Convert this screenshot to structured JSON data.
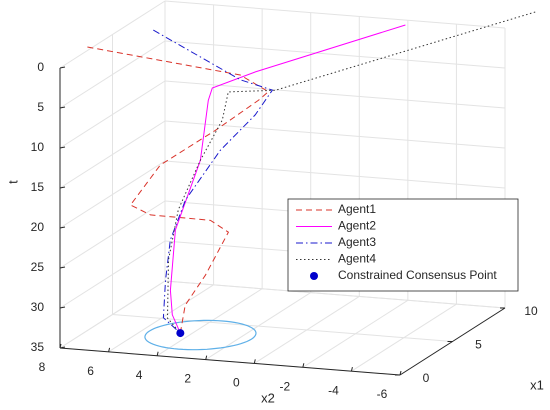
{
  "chart_data": {
    "type": "line3d",
    "x1label": "x1",
    "x2label": "x2",
    "tlabel": "t",
    "x1lim": [
      0,
      10
    ],
    "x2lim": [
      -6,
      8
    ],
    "tlim": [
      0,
      35
    ],
    "x1ticks": [
      0,
      5,
      10
    ],
    "x2ticks": [
      8,
      6,
      4,
      2,
      0,
      -2,
      -4,
      -6
    ],
    "tticks": [
      0,
      5,
      10,
      15,
      20,
      25,
      30,
      35
    ],
    "grid": true,
    "legend": "lower-right",
    "series": [
      {
        "name": "Agent1",
        "color": "#d9332a",
        "dash": "6,4",
        "x1": [
          3.07,
          5,
          5,
          4.8,
          4.5,
          4,
          3.8,
          4.5,
          6,
          6,
          4.5,
          3.6,
          3.25
        ],
        "x2": [
          8.2,
          2.74,
          1.58,
          1.91,
          3.55,
          5.6,
          6.74,
          6.22,
          4.4,
          3.66,
          3.96,
          4.4,
          4.45
        ],
        "t": [
          0,
          3.8,
          5.6,
          6.6,
          10.5,
          14.9,
          20,
          21.7,
          23.2,
          24.5,
          28.7,
          31.8,
          35
        ]
      },
      {
        "name": "Agent2",
        "color": "#ff00ff",
        "dash": "none",
        "x1": [
          9.35,
          6,
          5,
          4.5,
          4,
          3.5,
          3.3,
          3.25,
          3.25
        ],
        "x2": [
          -2.18,
          2.55,
          3.89,
          3.84,
          3.95,
          4.76,
          4.88,
          4.78,
          4.45
        ],
        "t": [
          0,
          4.2,
          5.7,
          6.8,
          13.9,
          22.4,
          29.8,
          32.8,
          35
        ]
      },
      {
        "name": "Agent3",
        "color": "#1a1acc",
        "dash": "7,3,1.5,3",
        "x1": [
          6.02,
          6.5,
          6,
          5.5,
          5,
          4.2,
          3.8,
          3.5,
          3.3,
          3.25
        ],
        "x2": [
          6.76,
          3.38,
          1.85,
          2.34,
          3.56,
          4.65,
          5.1,
          5.17,
          5.17,
          4.45
        ],
        "t": [
          0,
          5.8,
          6.3,
          9.1,
          13.4,
          19.2,
          24,
          28.8,
          33.3,
          35
        ]
      },
      {
        "name": "Agent4",
        "color": "#333333",
        "dash": "1.5,2.5",
        "x1": [
          12.44,
          6,
          5.5,
          5,
          4.5,
          4,
          3.6,
          3.3,
          3.25
        ],
        "x2": [
          -6.19,
          1.73,
          3.45,
          3.48,
          4.17,
          4.86,
          5.09,
          5,
          4.45
        ],
        "t": [
          0,
          6.3,
          6.5,
          9.6,
          14.4,
          20.3,
          26.3,
          33.3,
          35
        ]
      }
    ],
    "point": {
      "name": "Constrained Consensus Point",
      "color": "#0000cc",
      "x1": 3.25,
      "x2": 4.45,
      "t": 35
    },
    "circle": {
      "color": "#5fb0e8",
      "x1": 3.2,
      "x2": 3.6,
      "radius": 2.1,
      "t": 35
    }
  }
}
